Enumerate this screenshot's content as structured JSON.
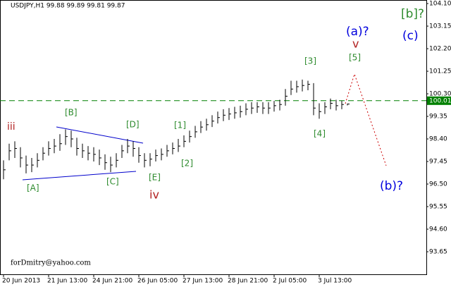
{
  "chart_data": {
    "type": "ohlc",
    "header": "USDJPY,H1  99.88 99.89 99.81 99.87",
    "footer": "forDmitry@yahoo.com",
    "categories": [
      "20 Jun 2013",
      null,
      null,
      null,
      null,
      null,
      null,
      null,
      "21 Jun 13:00",
      null,
      null,
      null,
      null,
      null,
      null,
      null,
      "24 Jun 21:00",
      null,
      null,
      null,
      null,
      null,
      null,
      null,
      "26 Jun 05:00",
      null,
      null,
      null,
      null,
      null,
      null,
      null,
      "27 Jun 13:00",
      null,
      null,
      null,
      null,
      null,
      null,
      null,
      "28 Jun 21:00",
      null,
      null,
      null,
      null,
      null,
      null,
      null,
      "2 Jul 05:00",
      null,
      null,
      null,
      null,
      null,
      null,
      null,
      "3 Jul 13:00",
      null,
      null,
      null,
      null,
      null
    ],
    "high": [
      97.5,
      98.2,
      98.3,
      98.05,
      97.7,
      97.6,
      97.8,
      98.05,
      98.3,
      98.4,
      98.6,
      98.8,
      98.75,
      98.45,
      98.2,
      98.1,
      98.05,
      97.95,
      97.75,
      97.65,
      97.8,
      98.15,
      98.4,
      98.3,
      98.05,
      97.8,
      97.8,
      97.95,
      98.0,
      98.15,
      98.25,
      98.4,
      98.55,
      98.75,
      98.95,
      99.15,
      99.25,
      99.4,
      99.55,
      99.65,
      99.7,
      99.75,
      99.8,
      99.9,
      99.95,
      99.95,
      99.95,
      99.95,
      100.0,
      100.05,
      100.5,
      100.85,
      100.85,
      100.9,
      100.85,
      100.75,
      99.9,
      99.95,
      100.1,
      100.05,
      100.0,
      99.89
    ],
    "low": [
      96.7,
      97.5,
      97.6,
      97.2,
      96.95,
      97.0,
      97.2,
      97.5,
      97.7,
      97.8,
      97.9,
      98.15,
      98.05,
      97.7,
      97.6,
      97.5,
      97.45,
      97.3,
      97.1,
      97.0,
      97.2,
      97.6,
      97.8,
      97.65,
      97.4,
      97.2,
      97.25,
      97.45,
      97.5,
      97.65,
      97.75,
      97.85,
      98.05,
      98.25,
      98.45,
      98.65,
      98.75,
      98.9,
      99.05,
      99.15,
      99.2,
      99.25,
      99.3,
      99.4,
      99.45,
      99.5,
      99.45,
      99.45,
      99.55,
      99.6,
      99.8,
      100.25,
      100.35,
      100.4,
      100.45,
      99.4,
      99.25,
      99.45,
      99.65,
      99.6,
      99.65,
      99.81
    ],
    "close": [
      97.1,
      97.9,
      98.0,
      97.6,
      97.3,
      97.3,
      97.5,
      97.8,
      98.0,
      98.1,
      98.2,
      98.5,
      98.4,
      98.0,
      97.9,
      97.8,
      97.75,
      97.6,
      97.4,
      97.3,
      97.5,
      97.9,
      98.1,
      98.0,
      97.7,
      97.5,
      97.55,
      97.7,
      97.75,
      97.9,
      98.0,
      98.1,
      98.3,
      98.5,
      98.7,
      98.9,
      99.0,
      99.15,
      99.3,
      99.4,
      99.45,
      99.5,
      99.55,
      99.65,
      99.7,
      99.75,
      99.7,
      99.7,
      99.8,
      99.85,
      100.2,
      100.5,
      100.6,
      100.65,
      100.7,
      99.7,
      99.55,
      99.75,
      99.9,
      99.8,
      99.85,
      99.87
    ],
    "color": "#000000",
    "current_price": 100.01,
    "current_price_color": "#008000",
    "ylim": [
      92.67,
      104.25
    ],
    "yticks": [
      {
        "value": 104.1,
        "label": "104.10"
      },
      {
        "value": 103.15,
        "label": "103.15"
      },
      {
        "value": 102.2,
        "label": "102.20"
      },
      {
        "value": 101.25,
        "label": "101.25"
      },
      {
        "value": 100.3,
        "label": "100.30"
      },
      {
        "value": 99.35,
        "label": "99.35"
      },
      {
        "value": 98.4,
        "label": "98.40"
      },
      {
        "value": 97.45,
        "label": "97.45"
      },
      {
        "value": 96.5,
        "label": "96.50"
      },
      {
        "value": 95.55,
        "label": "95.55"
      },
      {
        "value": 94.6,
        "label": "94.60"
      },
      {
        "value": 93.65,
        "label": "93.65"
      }
    ],
    "annotations": [
      "iii",
      "[B]",
      "[D]",
      "[1]",
      "[2]",
      "[A]",
      "[C]",
      "[E]",
      "iv",
      "[3]",
      "[4]",
      "[5]",
      "v",
      "(a)?",
      "(b)?",
      "[b]?",
      "(c)"
    ]
  }
}
